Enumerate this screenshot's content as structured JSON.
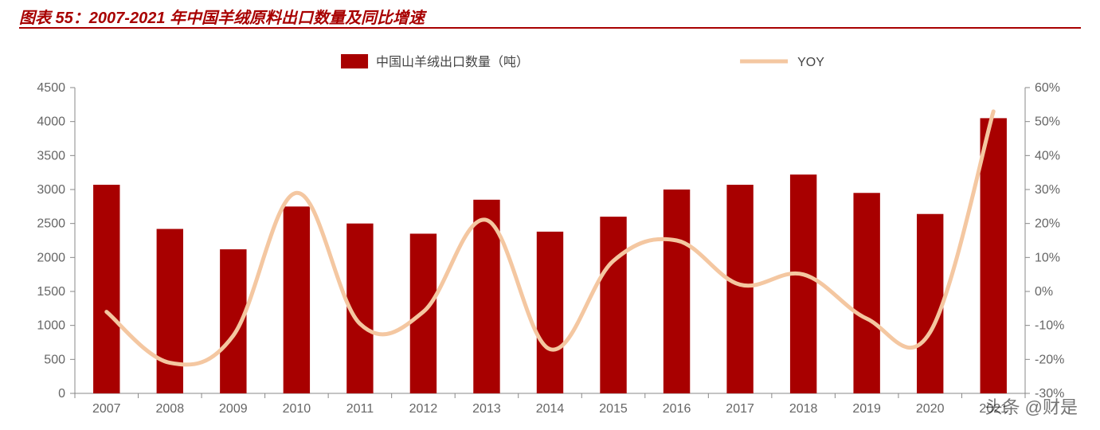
{
  "title": "图表 55：2007-2021 年中国羊绒原料出口数量及同比增速",
  "watermark": "头条 @财是",
  "chart": {
    "type": "bar+line",
    "legend": {
      "items": [
        {
          "label": "中国山羊绒出口数量（吨）",
          "swatch": "bar",
          "color": "#a80000"
        },
        {
          "label": "YOY",
          "swatch": "line",
          "color": "#f4c7a1"
        }
      ],
      "fontsize": 16,
      "text_color": "#444444"
    },
    "categories": [
      "2007",
      "2008",
      "2009",
      "2010",
      "2011",
      "2012",
      "2013",
      "2014",
      "2015",
      "2016",
      "2017",
      "2018",
      "2019",
      "2020",
      "2021"
    ],
    "bars": {
      "values": [
        3070,
        2420,
        2120,
        2750,
        2500,
        2350,
        2850,
        2380,
        2600,
        3000,
        3070,
        3220,
        2950,
        2640,
        4050
      ],
      "color": "#a80000",
      "bar_width_ratio": 0.42
    },
    "line": {
      "values": [
        -6,
        -21,
        -13,
        29,
        -9.5,
        -6,
        21,
        -17,
        9,
        15,
        2,
        5,
        -8,
        -12,
        53
      ],
      "color": "#f4c7a1",
      "stroke_width": 5,
      "smooth": true
    },
    "y_left": {
      "min": 0,
      "max": 4500,
      "step": 500,
      "tick_color": "#666666",
      "tick_fontsize": 16
    },
    "y_right": {
      "min": -30,
      "max": 60,
      "step": 10,
      "suffix": "%",
      "tick_color": "#666666",
      "tick_fontsize": 16
    },
    "x_axis": {
      "tick_color": "#666666",
      "tick_fontsize": 16
    },
    "axis_line_color": "#888888",
    "plot_background": "#ffffff"
  }
}
